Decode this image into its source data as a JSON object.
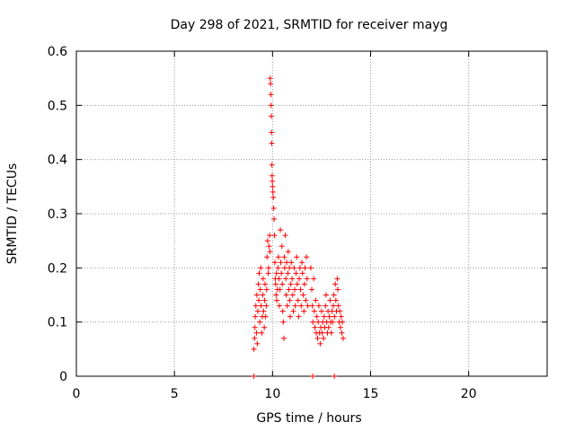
{
  "chart_data": {
    "type": "scatter",
    "title": "Day 298 of 2021, SRMTID for receiver mayg",
    "xlabel": "GPS time / hours",
    "ylabel": "SRMTID / TECUs",
    "xlim": [
      0,
      24
    ],
    "ylim": [
      0,
      0.6
    ],
    "xticks": [
      0,
      5,
      10,
      15,
      20
    ],
    "yticks": [
      0,
      0.1,
      0.2,
      0.3,
      0.4,
      0.5,
      0.6
    ],
    "grid": true,
    "marker": "+",
    "color": "#ff0000",
    "series": [
      {
        "values": [
          [
            9.05,
            0.05
          ],
          [
            9.08,
            0.07
          ],
          [
            9.1,
            0.09
          ],
          [
            9.12,
            0.11
          ],
          [
            9.15,
            0.13
          ],
          [
            9.18,
            0.08
          ],
          [
            9.2,
            0.15
          ],
          [
            9.22,
            0.06
          ],
          [
            9.25,
            0.12
          ],
          [
            9.28,
            0.17
          ],
          [
            9.3,
            0.14
          ],
          [
            9.32,
            0.19
          ],
          [
            9.35,
            0.1
          ],
          [
            9.38,
            0.16
          ],
          [
            9.4,
            0.2
          ],
          [
            9.42,
            0.13
          ],
          [
            9.45,
            0.08
          ],
          [
            9.48,
            0.11
          ],
          [
            9.5,
            0.15
          ],
          [
            9.52,
            0.18
          ],
          [
            9.55,
            0.12
          ],
          [
            9.58,
            0.09
          ],
          [
            9.6,
            0.14
          ],
          [
            9.62,
            0.17
          ],
          [
            9.65,
            0.11
          ],
          [
            9.68,
            0.13
          ],
          [
            9.7,
            0.16
          ],
          [
            9.72,
            0.22
          ],
          [
            9.75,
            0.25
          ],
          [
            9.78,
            0.19
          ],
          [
            9.8,
            0.2
          ],
          [
            9.82,
            0.24
          ],
          [
            9.85,
            0.26
          ],
          [
            9.87,
            0.23
          ],
          [
            9.88,
            0.55
          ],
          [
            9.9,
            0.54
          ],
          [
            9.92,
            0.52
          ],
          [
            9.93,
            0.5
          ],
          [
            9.94,
            0.48
          ],
          [
            9.95,
            0.45
          ],
          [
            9.96,
            0.43
          ],
          [
            9.97,
            0.39
          ],
          [
            9.98,
            0.37
          ],
          [
            9.99,
            0.36
          ],
          [
            10.0,
            0.35
          ],
          [
            10.02,
            0.34
          ],
          [
            10.04,
            0.33
          ],
          [
            10.06,
            0.31
          ],
          [
            10.08,
            0.29
          ],
          [
            10.1,
            0.26
          ],
          [
            10.12,
            0.21
          ],
          [
            10.14,
            0.18
          ],
          [
            10.16,
            0.17
          ],
          [
            10.18,
            0.15
          ],
          [
            10.2,
            0.19
          ],
          [
            10.22,
            0.14
          ],
          [
            10.25,
            0.16
          ],
          [
            10.28,
            0.2
          ],
          [
            10.3,
            0.22
          ],
          [
            10.33,
            0.18
          ],
          [
            10.35,
            0.13
          ],
          [
            10.38,
            0.16
          ],
          [
            10.4,
            0.27
          ],
          [
            10.42,
            0.21
          ],
          [
            10.45,
            0.19
          ],
          [
            10.48,
            0.24
          ],
          [
            10.5,
            0.17
          ],
          [
            10.52,
            0.12
          ],
          [
            10.55,
            0.1
          ],
          [
            10.58,
            0.07
          ],
          [
            10.6,
            0.22
          ],
          [
            10.62,
            0.2
          ],
          [
            10.65,
            0.26
          ],
          [
            10.68,
            0.18
          ],
          [
            10.7,
            0.15
          ],
          [
            10.72,
            0.21
          ],
          [
            10.75,
            0.13
          ],
          [
            10.78,
            0.19
          ],
          [
            10.8,
            0.23
          ],
          [
            10.83,
            0.16
          ],
          [
            10.86,
            0.2
          ],
          [
            10.88,
            0.14
          ],
          [
            10.9,
            0.11
          ],
          [
            10.93,
            0.17
          ],
          [
            10.96,
            0.21
          ],
          [
            11.0,
            0.18
          ],
          [
            11.03,
            0.15
          ],
          [
            11.06,
            0.12
          ],
          [
            11.1,
            0.2
          ],
          [
            11.13,
            0.16
          ],
          [
            11.16,
            0.13
          ],
          [
            11.2,
            0.19
          ],
          [
            11.23,
            0.22
          ],
          [
            11.26,
            0.17
          ],
          [
            11.3,
            0.14
          ],
          [
            11.33,
            0.11
          ],
          [
            11.36,
            0.18
          ],
          [
            11.4,
            0.2
          ],
          [
            11.43,
            0.16
          ],
          [
            11.46,
            0.13
          ],
          [
            11.5,
            0.21
          ],
          [
            11.53,
            0.19
          ],
          [
            11.56,
            0.15
          ],
          [
            11.6,
            0.12
          ],
          [
            11.63,
            0.17
          ],
          [
            11.66,
            0.2
          ],
          [
            11.7,
            0.14
          ],
          [
            11.73,
            0.22
          ],
          [
            11.76,
            0.18
          ],
          [
            11.8,
            0.13
          ],
          [
            11.95,
            0.2
          ],
          [
            12.0,
            0.16
          ],
          [
            12.03,
            0.13
          ],
          [
            12.06,
            0.1
          ],
          [
            12.1,
            0.18
          ],
          [
            12.13,
            0.12
          ],
          [
            12.16,
            0.09
          ],
          [
            12.2,
            0.14
          ],
          [
            12.23,
            0.08
          ],
          [
            12.26,
            0.11
          ],
          [
            12.3,
            0.07
          ],
          [
            12.33,
            0.1
          ],
          [
            12.36,
            0.13
          ],
          [
            12.4,
            0.08
          ],
          [
            12.43,
            0.06
          ],
          [
            12.46,
            0.09
          ],
          [
            12.5,
            0.12
          ],
          [
            12.53,
            0.08
          ],
          [
            12.56,
            0.1
          ],
          [
            12.6,
            0.07
          ],
          [
            12.63,
            0.11
          ],
          [
            12.66,
            0.09
          ],
          [
            12.7,
            0.13
          ],
          [
            12.73,
            0.15
          ],
          [
            12.76,
            0.1
          ],
          [
            12.8,
            0.08
          ],
          [
            12.83,
            0.12
          ],
          [
            12.86,
            0.09
          ],
          [
            12.9,
            0.11
          ],
          [
            12.93,
            0.14
          ],
          [
            12.96,
            0.1
          ],
          [
            13.0,
            0.08
          ],
          [
            13.03,
            0.12
          ],
          [
            13.06,
            0.1
          ],
          [
            13.1,
            0.13
          ],
          [
            13.13,
            0.15
          ],
          [
            13.16,
            0.11
          ],
          [
            13.2,
            0.17
          ],
          [
            13.23,
            0.14
          ],
          [
            13.26,
            0.12
          ],
          [
            13.3,
            0.18
          ],
          [
            13.33,
            0.16
          ],
          [
            13.36,
            0.13
          ],
          [
            13.4,
            0.1
          ],
          [
            13.43,
            0.12
          ],
          [
            13.46,
            0.09
          ],
          [
            13.5,
            0.11
          ],
          [
            13.53,
            0.08
          ],
          [
            13.56,
            0.1
          ],
          [
            13.6,
            0.07
          ]
        ]
      },
      {
        "values": [
          [
            9.05,
            0.0
          ],
          [
            12.05,
            0.0
          ],
          [
            13.15,
            0.0
          ]
        ]
      }
    ]
  }
}
